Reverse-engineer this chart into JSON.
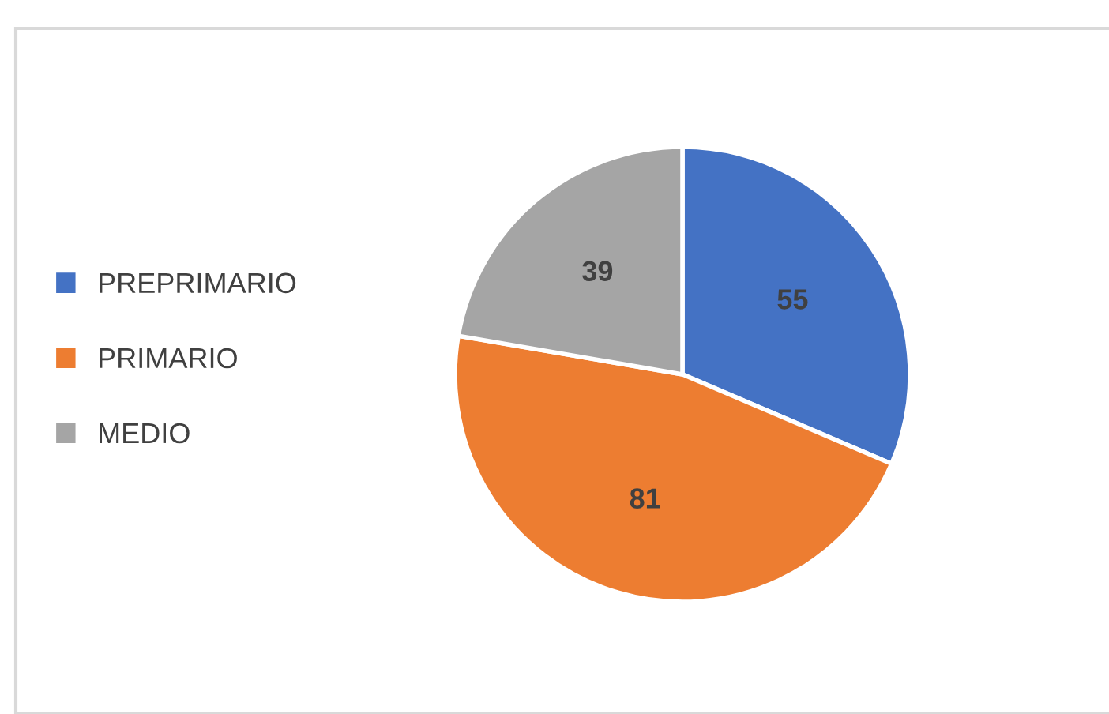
{
  "chart_data": {
    "type": "pie",
    "categories": [
      "PREPRIMARIO",
      "PRIMARIO",
      "MEDIO"
    ],
    "values": [
      55,
      81,
      39
    ],
    "colors": [
      "#4472c4",
      "#ed7d31",
      "#a5a5a5"
    ],
    "data_labels": true,
    "legend": "left"
  }
}
